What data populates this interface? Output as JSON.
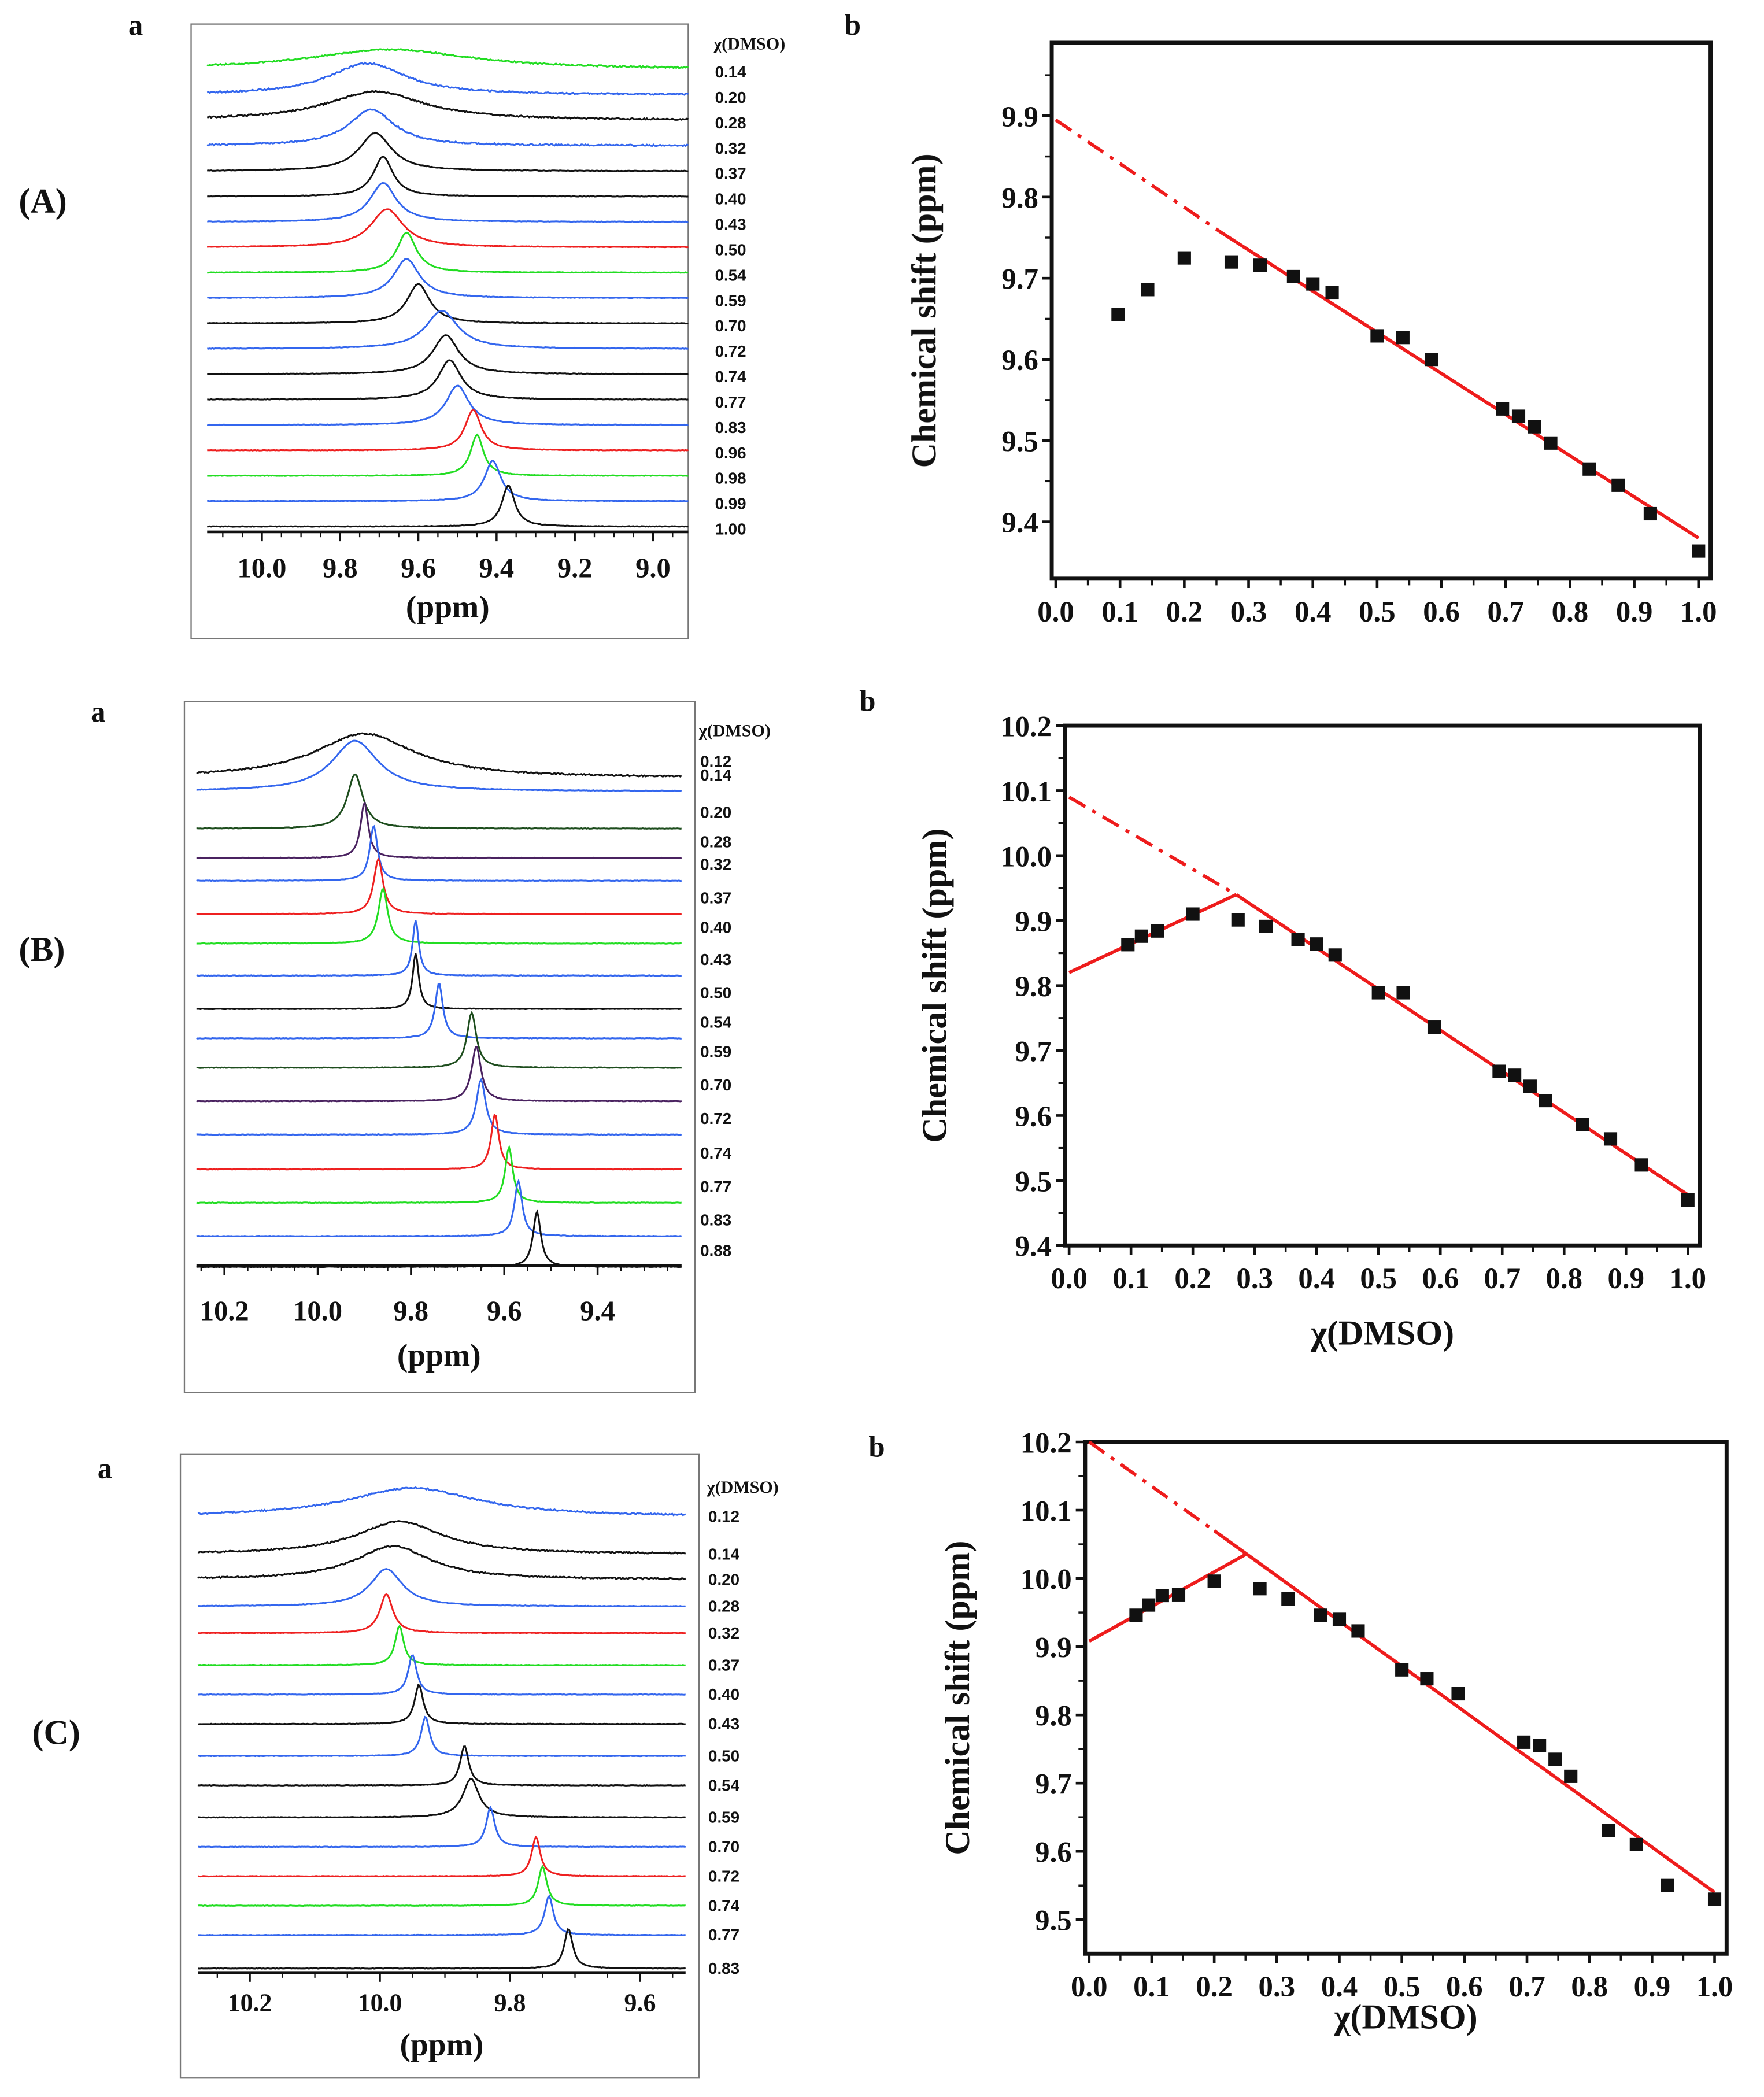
{
  "row_labels": [
    "(A)",
    "(B)",
    "(C)"
  ],
  "panel_letters": {
    "a": "a",
    "b": "b"
  },
  "colors": {
    "black": "#111111",
    "blue": "#3366ee",
    "green": "#22dd22",
    "red": "#ee2020",
    "darkgreen": "#1d4d1d",
    "purple": "#4a2260",
    "fit": "#ee1c1c",
    "marker": "#111111"
  },
  "chart_data": [
    {
      "id": "A-a",
      "type": "line",
      "title": "",
      "xlabel": "(ppm)",
      "legend_title": "χ(DMSO)",
      "xlim": [
        10.14,
        8.91
      ],
      "xticks": [
        {
          "v": 10.0,
          "t": "10.0"
        },
        {
          "v": 9.8,
          "t": "9.8"
        },
        {
          "v": 9.6,
          "t": "9.6"
        },
        {
          "v": 9.4,
          "t": "9.4"
        },
        {
          "v": 9.2,
          "t": "9.2"
        },
        {
          "v": 9.0,
          "t": "9.0"
        }
      ],
      "traces": [
        {
          "label": "0.14",
          "color": "green",
          "peak_ppm": 9.67,
          "width_ppm": 0.25
        },
        {
          "label": "0.20",
          "color": "blue",
          "peak_ppm": 9.73,
          "width_ppm": 0.12
        },
        {
          "label": "0.28",
          "color": "black",
          "peak_ppm": 9.71,
          "width_ppm": 0.15
        },
        {
          "label": "0.32",
          "color": "blue",
          "peak_ppm": 9.72,
          "width_ppm": 0.07
        },
        {
          "label": "0.37",
          "color": "black",
          "peak_ppm": 9.71,
          "width_ppm": 0.05
        },
        {
          "label": "0.40",
          "color": "black",
          "peak_ppm": 9.69,
          "width_ppm": 0.03
        },
        {
          "label": "0.43",
          "color": "blue",
          "peak_ppm": 9.69,
          "width_ppm": 0.04
        },
        {
          "label": "0.50",
          "color": "red",
          "peak_ppm": 9.68,
          "width_ppm": 0.05
        },
        {
          "label": "0.54",
          "color": "green",
          "peak_ppm": 9.63,
          "width_ppm": 0.03
        },
        {
          "label": "0.59",
          "color": "blue",
          "peak_ppm": 9.63,
          "width_ppm": 0.04
        },
        {
          "label": "0.70",
          "color": "black",
          "peak_ppm": 9.6,
          "width_ppm": 0.035
        },
        {
          "label": "0.72",
          "color": "blue",
          "peak_ppm": 9.54,
          "width_ppm": 0.05
        },
        {
          "label": "0.74",
          "color": "black",
          "peak_ppm": 9.53,
          "width_ppm": 0.04
        },
        {
          "label": "0.77",
          "color": "black",
          "peak_ppm": 9.52,
          "width_ppm": 0.035
        },
        {
          "label": "0.83",
          "color": "blue",
          "peak_ppm": 9.5,
          "width_ppm": 0.035
        },
        {
          "label": "0.96",
          "color": "red",
          "peak_ppm": 9.46,
          "width_ppm": 0.025
        },
        {
          "label": "0.98",
          "color": "green",
          "peak_ppm": 9.45,
          "width_ppm": 0.02
        },
        {
          "label": "0.99",
          "color": "blue",
          "peak_ppm": 9.41,
          "width_ppm": 0.025
        },
        {
          "label": "1.00",
          "color": "black",
          "peak_ppm": 9.37,
          "width_ppm": 0.02
        }
      ]
    },
    {
      "id": "A-b",
      "type": "scatter",
      "title": "",
      "xlabel": "",
      "ylabel": "Chemical shift (ppm)",
      "xlim": [
        0.0,
        1.0
      ],
      "ylim": [
        9.33,
        9.99
      ],
      "xticks": [
        "0.0",
        "0.1",
        "0.2",
        "0.3",
        "0.4",
        "0.5",
        "0.6",
        "0.7",
        "0.8",
        "0.9",
        "1.0"
      ],
      "yticks": [
        "9.4",
        "9.5",
        "9.6",
        "9.7",
        "9.8",
        "9.9"
      ],
      "points": [
        [
          0.097,
          9.655
        ],
        [
          0.143,
          9.686
        ],
        [
          0.2,
          9.725
        ],
        [
          0.273,
          9.72
        ],
        [
          0.318,
          9.716
        ],
        [
          0.37,
          9.702
        ],
        [
          0.4,
          9.693
        ],
        [
          0.43,
          9.682
        ],
        [
          0.5,
          9.629
        ],
        [
          0.54,
          9.627
        ],
        [
          0.585,
          9.6
        ],
        [
          0.695,
          9.539
        ],
        [
          0.72,
          9.53
        ],
        [
          0.745,
          9.517
        ],
        [
          0.77,
          9.497
        ],
        [
          0.83,
          9.465
        ],
        [
          0.875,
          9.445
        ],
        [
          0.925,
          9.41
        ],
        [
          1.0,
          9.364
        ]
      ],
      "fit_lines": [
        {
          "style": "dash-dot",
          "from": [
            0.0,
            9.895
          ],
          "to": [
            0.26,
            9.755
          ]
        },
        {
          "style": "solid",
          "from": [
            0.26,
            9.755
          ],
          "to": [
            1.0,
            9.38
          ]
        }
      ]
    },
    {
      "id": "B-a",
      "type": "line",
      "title": "",
      "xlabel": "(ppm)",
      "legend_title": "χ(DMSO)",
      "xlim": [
        10.26,
        9.22
      ],
      "xticks": [
        {
          "v": 10.2,
          "t": "10.2"
        },
        {
          "v": 10.0,
          "t": "10.0"
        },
        {
          "v": 9.8,
          "t": "9.8"
        },
        {
          "v": 9.6,
          "t": "9.6"
        },
        {
          "v": 9.4,
          "t": "9.4"
        }
      ],
      "traces": [
        {
          "label": "0.12",
          "color": "black",
          "peak_ppm": 9.9,
          "width_ppm": 0.13
        },
        {
          "label": "0.14",
          "color": "blue",
          "peak_ppm": 9.92,
          "width_ppm": 0.06
        },
        {
          "label": "0.20",
          "color": "darkgreen",
          "peak_ppm": 9.92,
          "width_ppm": 0.02
        },
        {
          "label": "0.28",
          "color": "purple",
          "peak_ppm": 9.9,
          "width_ppm": 0.01
        },
        {
          "label": "0.32",
          "color": "blue",
          "peak_ppm": 9.88,
          "width_ppm": 0.01
        },
        {
          "label": "0.37",
          "color": "red",
          "peak_ppm": 9.87,
          "width_ppm": 0.012
        },
        {
          "label": "0.40",
          "color": "green",
          "peak_ppm": 9.86,
          "width_ppm": 0.012
        },
        {
          "label": "0.43",
          "color": "blue",
          "peak_ppm": 9.79,
          "width_ppm": 0.008
        },
        {
          "label": "0.50",
          "color": "black",
          "peak_ppm": 9.79,
          "width_ppm": 0.008
        },
        {
          "label": "0.54",
          "color": "blue",
          "peak_ppm": 9.74,
          "width_ppm": 0.01
        },
        {
          "label": "0.59",
          "color": "darkgreen",
          "peak_ppm": 9.67,
          "width_ppm": 0.012
        },
        {
          "label": "0.70",
          "color": "purple",
          "peak_ppm": 9.66,
          "width_ppm": 0.012
        },
        {
          "label": "0.72",
          "color": "blue",
          "peak_ppm": 9.65,
          "width_ppm": 0.012
        },
        {
          "label": "0.74",
          "color": "red",
          "peak_ppm": 9.62,
          "width_ppm": 0.01
        },
        {
          "label": "0.77",
          "color": "green",
          "peak_ppm": 9.59,
          "width_ppm": 0.01
        },
        {
          "label": "0.83",
          "color": "blue",
          "peak_ppm": 9.57,
          "width_ppm": 0.01
        },
        {
          "label": "0.88",
          "color": "black",
          "peak_ppm": 9.53,
          "width_ppm": 0.01
        }
      ]
    },
    {
      "id": "B-b",
      "type": "scatter",
      "title": "",
      "xlabel": "χ(DMSO)",
      "ylabel": "Chemical shift (ppm)",
      "xlim": [
        0.0,
        1.0
      ],
      "ylim": [
        9.4,
        10.2
      ],
      "xticks": [
        "0.0",
        "0.1",
        "0.2",
        "0.3",
        "0.4",
        "0.5",
        "0.6",
        "0.7",
        "0.8",
        "0.9",
        "1.0"
      ],
      "yticks": [
        "9.4",
        "9.5",
        "9.6",
        "9.7",
        "9.8",
        "9.9",
        "10.0",
        "10.1",
        "10.2"
      ],
      "points": [
        [
          0.095,
          9.863
        ],
        [
          0.117,
          9.876
        ],
        [
          0.143,
          9.884
        ],
        [
          0.2,
          9.91
        ],
        [
          0.273,
          9.901
        ],
        [
          0.318,
          9.891
        ],
        [
          0.37,
          9.871
        ],
        [
          0.4,
          9.864
        ],
        [
          0.43,
          9.847
        ],
        [
          0.5,
          9.789
        ],
        [
          0.54,
          9.789
        ],
        [
          0.59,
          9.736
        ],
        [
          0.695,
          9.668
        ],
        [
          0.72,
          9.662
        ],
        [
          0.745,
          9.645
        ],
        [
          0.77,
          9.623
        ],
        [
          0.83,
          9.586
        ],
        [
          0.875,
          9.564
        ],
        [
          0.925,
          9.524
        ],
        [
          1.0,
          9.47
        ]
      ],
      "fit_lines": [
        {
          "style": "solid",
          "from": [
            0.0,
            9.82
          ],
          "to": [
            0.27,
            9.94
          ]
        },
        {
          "style": "dash-dot",
          "from": [
            0.0,
            10.09
          ],
          "to": [
            0.27,
            9.94
          ]
        },
        {
          "style": "solid",
          "from": [
            0.27,
            9.94
          ],
          "to": [
            1.0,
            9.478
          ]
        }
      ]
    },
    {
      "id": "C-a",
      "type": "line",
      "title": "",
      "xlabel": "(ppm)",
      "legend_title": "χ(DMSO)",
      "xlim": [
        10.28,
        9.53
      ],
      "xticks": [
        {
          "v": 10.2,
          "t": "10.2"
        },
        {
          "v": 10.0,
          "t": "10.0"
        },
        {
          "v": 9.8,
          "t": "9.8"
        },
        {
          "v": 9.6,
          "t": "9.6"
        }
      ],
      "traces": [
        {
          "label": "0.12",
          "color": "blue",
          "peak_ppm": 9.95,
          "width_ppm": 0.12
        },
        {
          "label": "0.14",
          "color": "black",
          "peak_ppm": 9.97,
          "width_ppm": 0.08
        },
        {
          "label": "0.20",
          "color": "black",
          "peak_ppm": 9.98,
          "width_ppm": 0.07
        },
        {
          "label": "0.28",
          "color": "blue",
          "peak_ppm": 9.99,
          "width_ppm": 0.03
        },
        {
          "label": "0.32",
          "color": "red",
          "peak_ppm": 9.99,
          "width_ppm": 0.012
        },
        {
          "label": "0.37",
          "color": "green",
          "peak_ppm": 9.97,
          "width_ppm": 0.008
        },
        {
          "label": "0.40",
          "color": "blue",
          "peak_ppm": 9.95,
          "width_ppm": 0.008
        },
        {
          "label": "0.43",
          "color": "black",
          "peak_ppm": 9.94,
          "width_ppm": 0.008
        },
        {
          "label": "0.50",
          "color": "blue",
          "peak_ppm": 9.93,
          "width_ppm": 0.008
        },
        {
          "label": "0.54",
          "color": "black",
          "peak_ppm": 9.87,
          "width_ppm": 0.008
        },
        {
          "label": "0.59",
          "color": "black",
          "peak_ppm": 9.86,
          "width_ppm": 0.015
        },
        {
          "label": "0.70",
          "color": "blue",
          "peak_ppm": 9.83,
          "width_ppm": 0.008
        },
        {
          "label": "0.72",
          "color": "red",
          "peak_ppm": 9.76,
          "width_ppm": 0.008
        },
        {
          "label": "0.74",
          "color": "green",
          "peak_ppm": 9.75,
          "width_ppm": 0.008
        },
        {
          "label": "0.77",
          "color": "blue",
          "peak_ppm": 9.74,
          "width_ppm": 0.008
        },
        {
          "label": "0.83",
          "color": "black",
          "peak_ppm": 9.71,
          "width_ppm": 0.008
        }
      ]
    },
    {
      "id": "C-b",
      "type": "scatter",
      "title": "",
      "xlabel": "χ(DMSO)",
      "ylabel": "Chemical shift (ppm)",
      "xlim": [
        0.0,
        1.0
      ],
      "ylim": [
        9.45,
        10.2
      ],
      "xticks": [
        "0.0",
        "0.1",
        "0.2",
        "0.3",
        "0.4",
        "0.5",
        "0.6",
        "0.7",
        "0.8",
        "0.9",
        "1.0"
      ],
      "yticks": [
        "9.5",
        "9.6",
        "9.7",
        "9.8",
        "9.9",
        "10.0",
        "10.1",
        "10.2"
      ],
      "points": [
        [
          0.075,
          9.946
        ],
        [
          0.095,
          9.961
        ],
        [
          0.117,
          9.975
        ],
        [
          0.143,
          9.976
        ],
        [
          0.2,
          9.996
        ],
        [
          0.273,
          9.985
        ],
        [
          0.318,
          9.97
        ],
        [
          0.37,
          9.946
        ],
        [
          0.4,
          9.94
        ],
        [
          0.43,
          9.923
        ],
        [
          0.5,
          9.866
        ],
        [
          0.54,
          9.853
        ],
        [
          0.59,
          9.831
        ],
        [
          0.695,
          9.76
        ],
        [
          0.72,
          9.755
        ],
        [
          0.745,
          9.735
        ],
        [
          0.77,
          9.71
        ],
        [
          0.83,
          9.631
        ],
        [
          0.875,
          9.61
        ],
        [
          0.925,
          9.55
        ],
        [
          1.0,
          9.53
        ]
      ],
      "fit_lines": [
        {
          "style": "solid",
          "from": [
            0.0,
            9.908
          ],
          "to": [
            0.25,
            10.035
          ]
        },
        {
          "style": "dash-dot",
          "from": [
            0.0,
            10.2
          ],
          "to": [
            0.2,
            10.07
          ]
        },
        {
          "style": "solid",
          "from": [
            0.2,
            10.07
          ],
          "to": [
            1.0,
            9.54
          ]
        }
      ]
    }
  ]
}
